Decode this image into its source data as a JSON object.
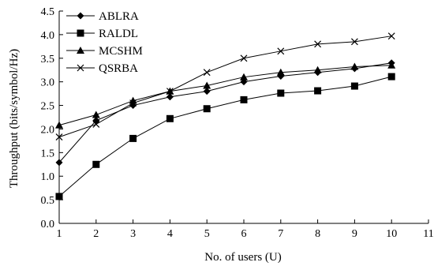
{
  "chart_data": {
    "type": "line",
    "xlabel": "No. of users (U)",
    "ylabel": "Throughput (bits/symbol/Hz)",
    "xlim": [
      1,
      11
    ],
    "ylim": [
      0,
      4.5
    ],
    "x_ticks": [
      1,
      2,
      3,
      4,
      5,
      6,
      7,
      8,
      9,
      10,
      11
    ],
    "y_ticks": [
      "0.0",
      "0.5",
      "1.0",
      "1.5",
      "2.0",
      "2.5",
      "3.0",
      "3.5",
      "4.0",
      "4.5"
    ],
    "grid": false,
    "legend_position": "top-left",
    "x": [
      1,
      2,
      3,
      4,
      5,
      6,
      7,
      8,
      9,
      10
    ],
    "series": [
      {
        "name": "ABLRA",
        "marker": "diamond",
        "values": [
          1.29,
          2.18,
          2.5,
          2.68,
          2.8,
          3.0,
          3.12,
          3.2,
          3.28,
          3.4
        ]
      },
      {
        "name": "RALDL",
        "marker": "square",
        "values": [
          0.57,
          1.25,
          1.8,
          2.22,
          2.43,
          2.62,
          2.76,
          2.81,
          2.91,
          3.11
        ]
      },
      {
        "name": "MCSHM",
        "marker": "triangle",
        "values": [
          2.08,
          2.3,
          2.6,
          2.8,
          2.92,
          3.1,
          3.2,
          3.25,
          3.32,
          3.35
        ]
      },
      {
        "name": "QSRBA",
        "marker": "cross",
        "values": [
          1.83,
          2.1,
          2.55,
          2.8,
          3.2,
          3.5,
          3.65,
          3.8,
          3.85,
          3.97
        ]
      }
    ],
    "colors": {
      "line": "#000000",
      "axis": "#000000"
    }
  }
}
